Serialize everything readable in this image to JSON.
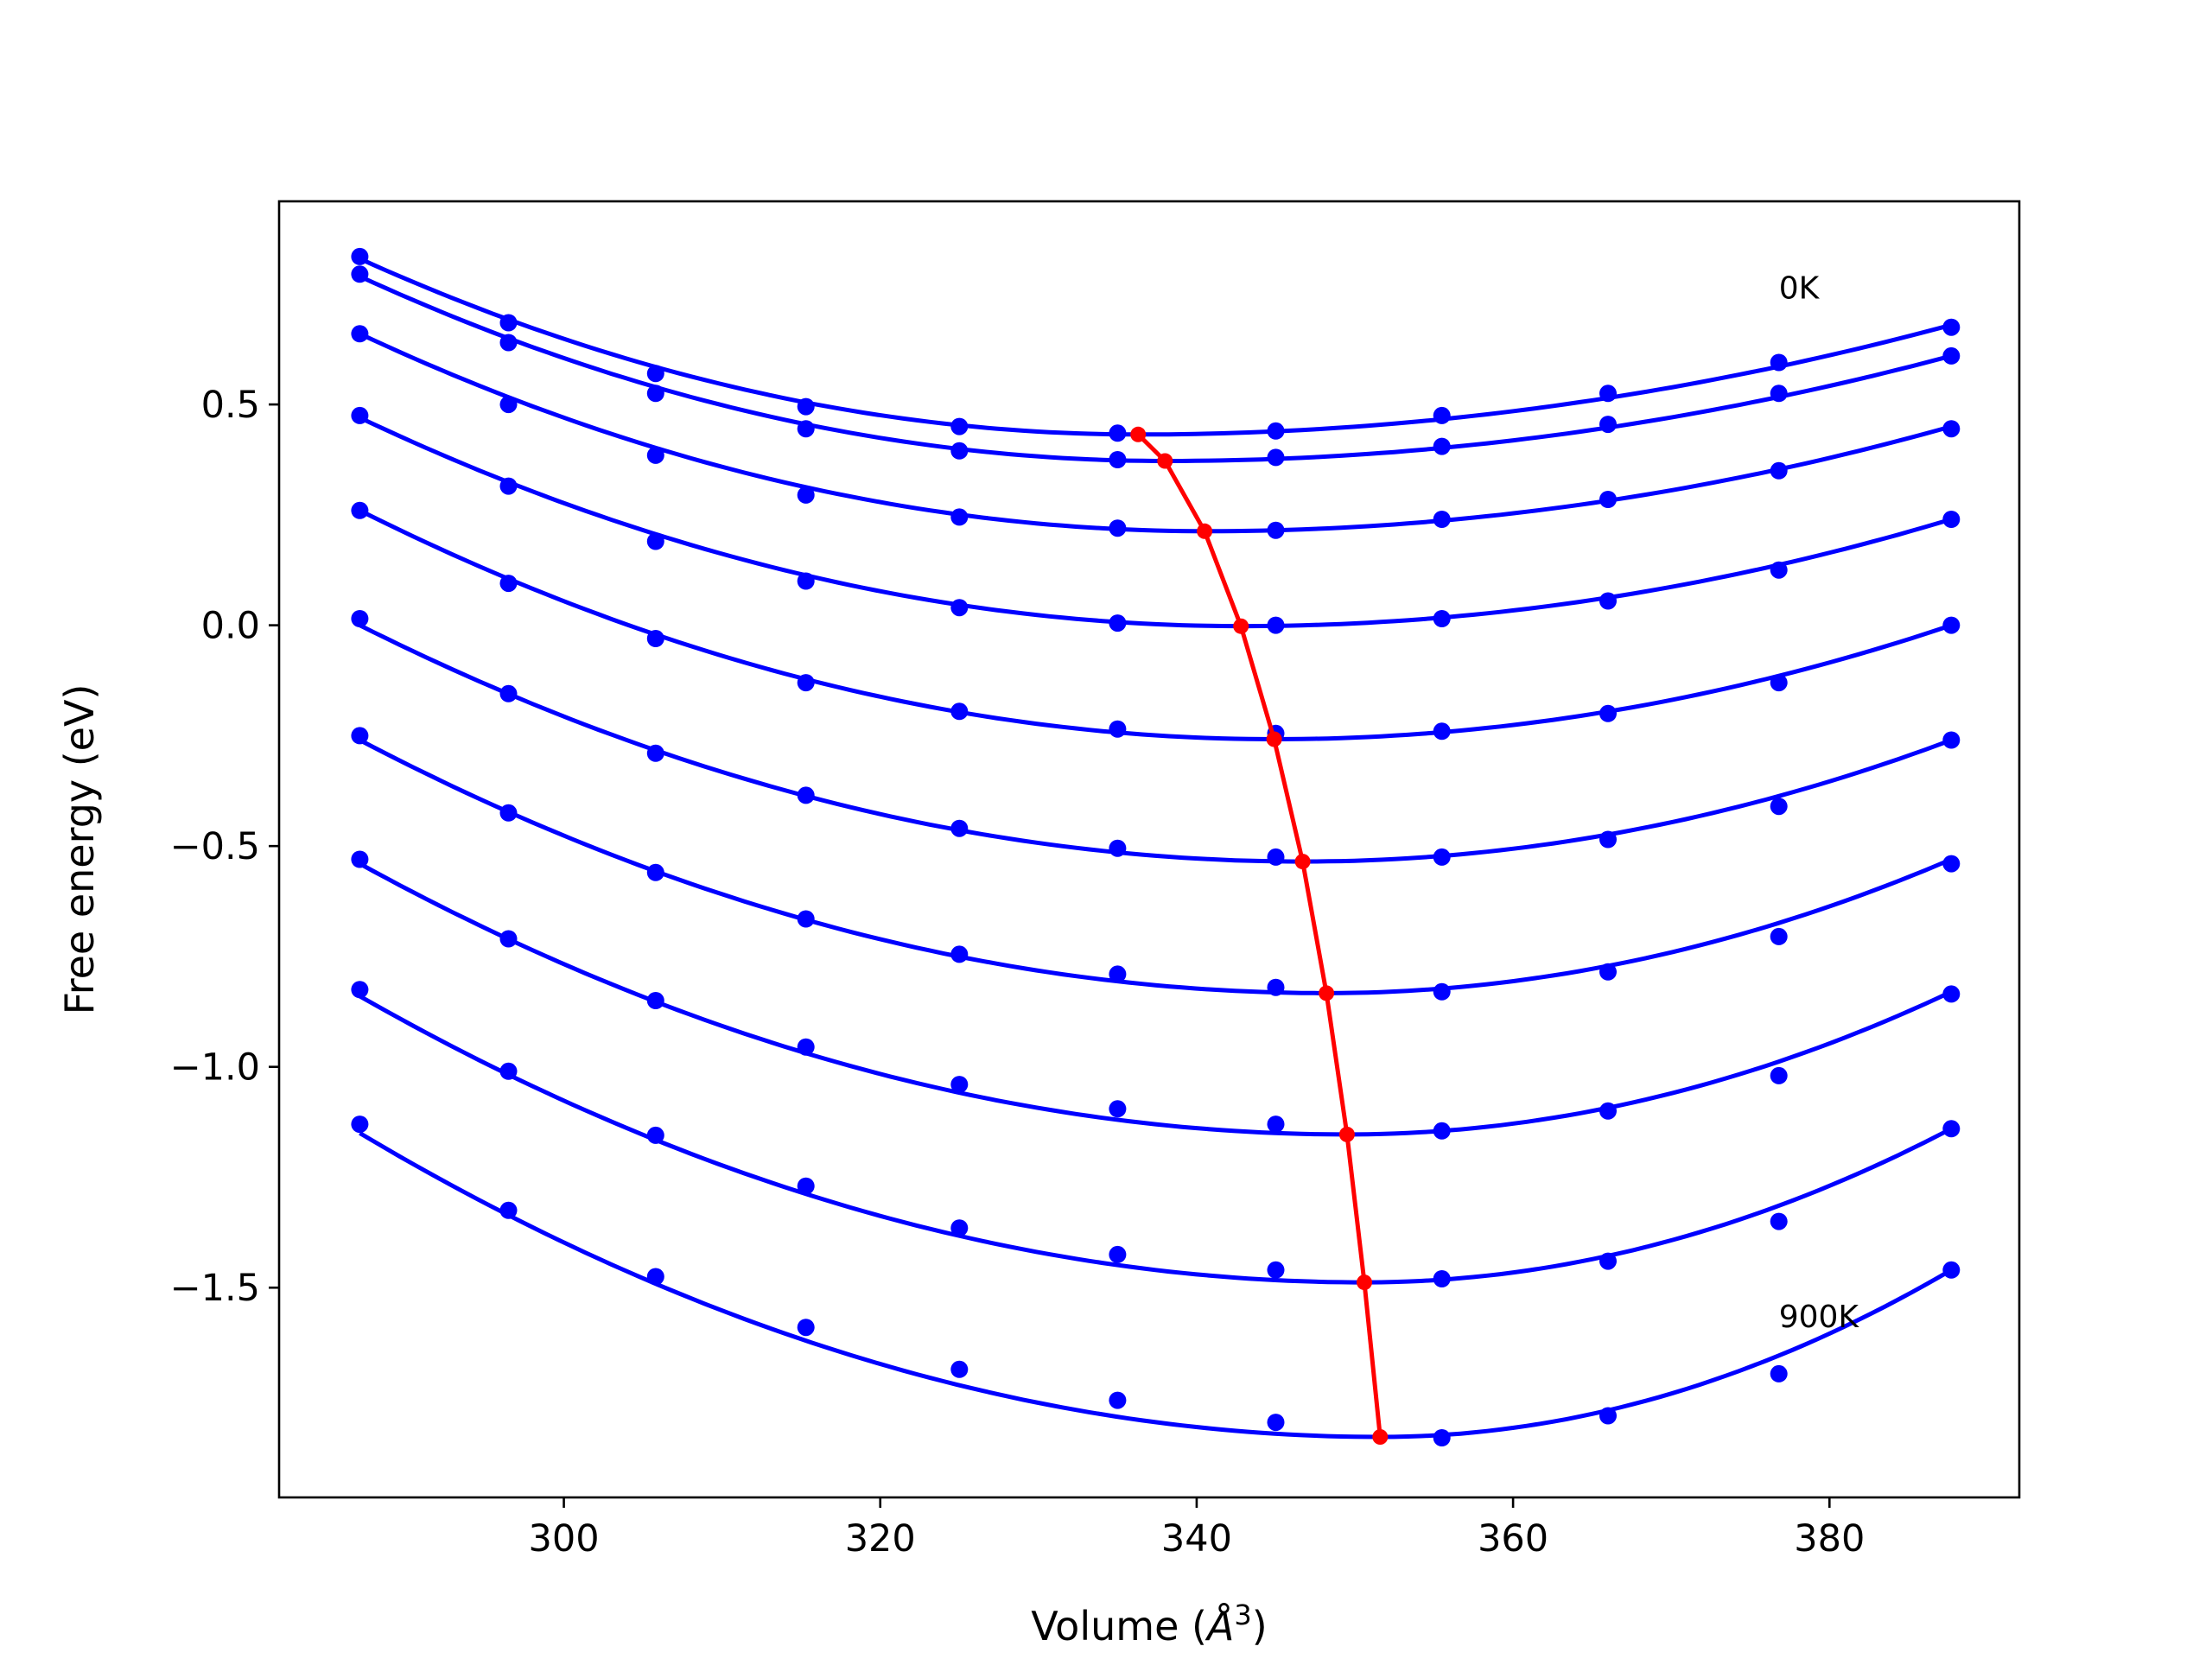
{
  "chart_data": {
    "type": "line",
    "title": "",
    "xlabel": "Volume (",
    "xlabel_unit": "Å",
    "xlabel_exp": "3",
    "xlabel_close": ")",
    "ylabel": "Free energy (eV)",
    "xlim": [
      282,
      392
    ],
    "ylim": [
      -1.975,
      0.96
    ],
    "xticks": [
      300,
      320,
      340,
      360,
      380
    ],
    "xtick_labels": [
      "300",
      "320",
      "340",
      "360",
      "380"
    ],
    "yticks": [
      0.5,
      0.0,
      -0.5,
      -1.0,
      -1.5
    ],
    "ytick_labels": [
      "0.5",
      "0.0",
      "−0.5",
      "−1.0",
      "−1.5"
    ],
    "grid": false,
    "legend": "none",
    "annotations": [
      {
        "text": "0K",
        "x": 376.8,
        "y": 0.74
      },
      {
        "text": "900K",
        "x": 376.8,
        "y": -1.59
      }
    ],
    "x": [
      287.1,
      296.5,
      305.8,
      315.3,
      325.0,
      335.0,
      345.0,
      355.5,
      366.0,
      376.8,
      387.7
    ],
    "fit_curves": [
      {
        "xmin": 287.1,
        "xmax": 387.7,
        "xmin_value": 336.3,
        "ymin": 0.432,
        "y_left": 0.83,
        "y_right": 0.68
      },
      {
        "xmin": 287.1,
        "xmin_value": 338.0,
        "ymin": 0.372,
        "xmax": 387.7,
        "y_left": 0.79,
        "y_right": 0.61
      },
      {
        "xmin": 287.1,
        "xmin_value": 340.5,
        "ymin": 0.213,
        "xmax": 387.7,
        "y_left": 0.66,
        "y_right": 0.45
      },
      {
        "xmin": 287.1,
        "xmin_value": 342.8,
        "ymin": -0.002,
        "xmax": 387.7,
        "y_left": 0.47,
        "y_right": 0.24
      },
      {
        "xmin": 287.1,
        "xmin_value": 344.9,
        "ymin": -0.258,
        "xmax": 387.7,
        "y_left": 0.26,
        "y_right": 0.0
      },
      {
        "xmin": 287.1,
        "xmin_value": 346.7,
        "ymin": -0.535,
        "xmax": 387.7,
        "y_left": 0.0,
        "y_right": -0.26
      },
      {
        "xmin": 287.1,
        "xmin_value": 348.2,
        "ymin": -0.833,
        "xmax": 387.7,
        "y_left": -0.26,
        "y_right": -0.53
      },
      {
        "xmin": 287.1,
        "xmin_value": 349.5,
        "ymin": -1.153,
        "xmax": 387.7,
        "y_left": -0.54,
        "y_right": -0.83
      },
      {
        "xmin": 287.1,
        "xmin_value": 350.6,
        "ymin": -1.488,
        "xmax": 387.7,
        "y_left": -0.84,
        "y_right": -1.14
      },
      {
        "xmin": 287.1,
        "xmin_value": 351.6,
        "ymin": -1.838,
        "xmax": 387.7,
        "y_left": -1.15,
        "y_right": -1.46
      }
    ],
    "series": [
      {
        "values": [
          0.835,
          0.685,
          0.57,
          0.495,
          0.45,
          0.435,
          0.44,
          0.475,
          0.525,
          0.595,
          0.675
        ]
      },
      {
        "values": [
          0.795,
          0.64,
          0.525,
          0.445,
          0.395,
          0.375,
          0.38,
          0.405,
          0.455,
          0.525,
          0.61
        ]
      },
      {
        "values": [
          0.66,
          0.5,
          0.385,
          0.295,
          0.245,
          0.22,
          0.215,
          0.24,
          0.285,
          0.35,
          0.445
        ]
      },
      {
        "values": [
          0.475,
          0.315,
          0.19,
          0.1,
          0.04,
          0.005,
          0.0,
          0.015,
          0.055,
          0.125,
          0.24
        ]
      },
      {
        "values": [
          0.015,
          -0.155,
          -0.29,
          -0.385,
          -0.46,
          -0.505,
          -0.525,
          -0.525,
          -0.485,
          -0.41,
          -0.26
        ]
      },
      {
        "values": [
          -0.25,
          -0.425,
          -0.56,
          -0.665,
          -0.745,
          -0.79,
          -0.82,
          -0.83,
          -0.785,
          -0.705,
          -0.54
        ]
      },
      {
        "values": [
          -0.53,
          -0.71,
          -0.85,
          -0.955,
          -1.04,
          -1.095,
          -1.13,
          -1.145,
          -1.1,
          -1.02,
          -0.835
        ]
      },
      {
        "values": [
          -0.825,
          -1.01,
          -1.155,
          -1.27,
          -1.365,
          -1.425,
          -1.46,
          -1.48,
          -1.44,
          -1.35,
          -1.14
        ]
      },
      {
        "values": [
          -1.13,
          -1.325,
          -1.475,
          -1.59,
          -1.685,
          -1.755,
          -1.805,
          -1.84,
          -1.79,
          -1.695,
          -1.46
        ]
      },
      {
        "values": [
          0.26,
          0.095,
          -0.03,
          -0.13,
          -0.195,
          -0.235,
          -0.245,
          -0.24,
          -0.2,
          -0.13,
          0.0
        ]
      }
    ],
    "minimum_path": {
      "x": [
        336.3,
        338.0,
        340.5,
        342.8,
        344.9,
        346.7,
        348.2,
        349.5,
        350.6,
        351.6
      ],
      "y": [
        0.432,
        0.372,
        0.213,
        -0.002,
        -0.258,
        -0.535,
        -0.833,
        -1.153,
        -1.488,
        -1.838
      ]
    },
    "colors": {
      "curve": "#0000ff",
      "minimum_path": "#ff0000",
      "axes": "#000000"
    }
  }
}
